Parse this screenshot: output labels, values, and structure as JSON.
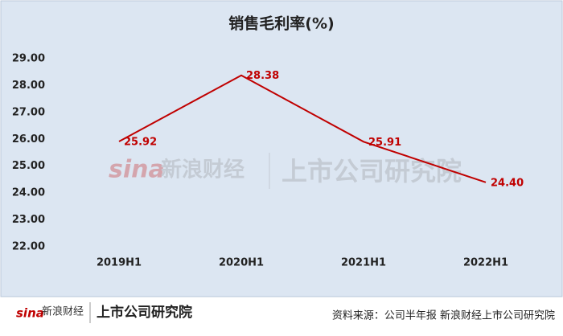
{
  "chart_data": {
    "type": "line",
    "title": "销售毛利率(%)",
    "categories": [
      "2019H1",
      "2020H1",
      "2021H1",
      "2022H1"
    ],
    "series": [
      {
        "name": "销售毛利率",
        "color": "#c00000",
        "values": [
          25.92,
          28.38,
          25.91,
          24.4
        ],
        "value_labels": [
          "25.92",
          "28.38",
          "25.91",
          "24.40"
        ]
      }
    ],
    "ylim": [
      22,
      29
    ],
    "yticks": [
      {
        "value": 22,
        "label": "22.00"
      },
      {
        "value": 23,
        "label": "23.00"
      },
      {
        "value": 24,
        "label": "24.00"
      },
      {
        "value": 25,
        "label": "25.00"
      },
      {
        "value": 26,
        "label": "26.00"
      },
      {
        "value": 27,
        "label": "27.00"
      },
      {
        "value": 28,
        "label": "28.00"
      },
      {
        "value": 29,
        "label": "29.00"
      }
    ],
    "grid": false
  },
  "footer": {
    "source": "资料来源：公司半年报 新浪财经上市公司研究院",
    "logo_sina": "sina",
    "logo_name": "新浪财经",
    "logo_institute": "上市公司研究院"
  }
}
